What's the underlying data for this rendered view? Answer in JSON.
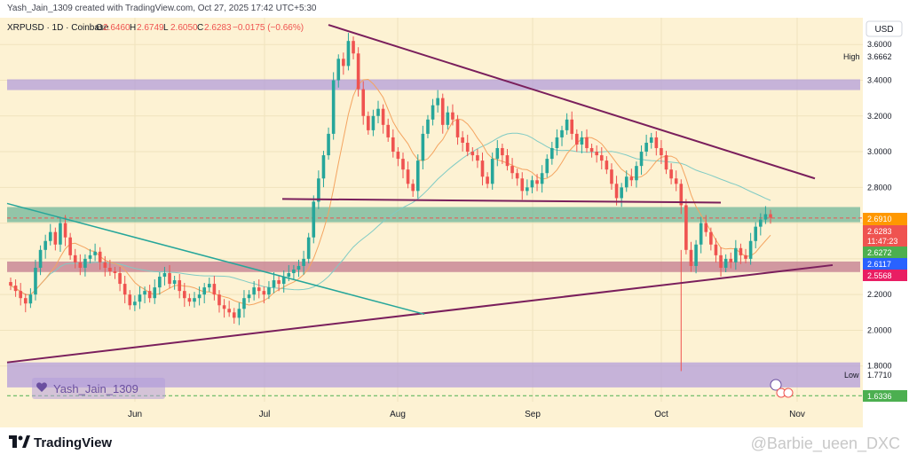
{
  "header": {
    "created": "Yash_Jain_1309 created with TradingView.com, Oct 27, 2025 17:42 UTC+5:30"
  },
  "legend": {
    "symbol": "XRPUSD · 1D · Coinbase",
    "o_label": "O",
    "o": "2.6460",
    "h_label": "H",
    "h": "2.6749",
    "l_label": "L",
    "l": "2.6050",
    "c_label": "C",
    "c": "2.6283",
    "change": "−0.0175 (−0.66%)"
  },
  "currency": "USD",
  "watermark_user": "Yash_Jain_1309",
  "brand": "TradingView",
  "source_watermark": "@Barbie_ueen_DXC",
  "price_labels": {
    "high_label": "High",
    "high": "3.6662",
    "low_label": "Low",
    "low": "1.7710",
    "l1": "2.6910",
    "current": "2.6283",
    "countdown": "11:47:23",
    "l2": "2.6272",
    "l3": "2.6117",
    "l4": "2.5568",
    "l5": "1.6336"
  },
  "colors": {
    "up": "#26a69a",
    "down": "#ef5350",
    "background": "#fdf2d3",
    "purple_zone": "#b39ddb",
    "green_zone": "#6fb59a",
    "red_zone": "#c2798f",
    "trendline": "#7a1f5c",
    "teal_line": "#26a69a"
  },
  "chart_data": {
    "type": "candlestick",
    "y_ticks": [
      "1.8000",
      "2.0000",
      "2.2000",
      "2.4000",
      "2.6000",
      "2.8000",
      "3.0000",
      "3.2000",
      "3.4000",
      "3.6000"
    ],
    "x_ticks": [
      "Jun",
      "Jul",
      "Aug",
      "Sep",
      "Oct",
      "Nov"
    ],
    "ylim": [
      1.6,
      3.75
    ],
    "zones": [
      {
        "from": 3.345,
        "to": 3.405,
        "color": "purple"
      },
      {
        "from": 2.605,
        "to": 2.69,
        "color": "green"
      },
      {
        "from": 2.326,
        "to": 2.385,
        "color": "red"
      },
      {
        "from": 1.68,
        "to": 1.82,
        "color": "purple"
      }
    ],
    "closes": [
      2.25,
      2.22,
      2.18,
      2.15,
      2.2,
      2.35,
      2.45,
      2.5,
      2.55,
      2.48,
      2.6,
      2.52,
      2.42,
      2.38,
      2.35,
      2.4,
      2.42,
      2.44,
      2.38,
      2.35,
      2.33,
      2.32,
      2.26,
      2.2,
      2.14,
      2.16,
      2.2,
      2.22,
      2.18,
      2.24,
      2.3,
      2.32,
      2.26,
      2.28,
      2.22,
      2.18,
      2.16,
      2.18,
      2.2,
      2.24,
      2.26,
      2.2,
      2.14,
      2.12,
      2.1,
      2.07,
      2.12,
      2.18,
      2.2,
      2.24,
      2.22,
      2.2,
      2.24,
      2.28,
      2.26,
      2.3,
      2.32,
      2.34,
      2.36,
      2.4,
      2.52,
      2.72,
      2.85,
      2.98,
      3.1,
      3.4,
      3.52,
      3.48,
      3.62,
      3.55,
      3.35,
      3.2,
      3.12,
      3.2,
      3.24,
      3.15,
      3.08,
      3.0,
      2.96,
      2.9,
      2.82,
      2.78,
      2.95,
      3.1,
      3.18,
      3.26,
      3.3,
      3.15,
      3.22,
      3.18,
      3.08,
      3.05,
      3.0,
      2.98,
      2.95,
      2.86,
      2.82,
      2.96,
      3.02,
      2.98,
      2.92,
      2.88,
      2.85,
      2.78,
      2.8,
      2.84,
      2.82,
      2.88,
      2.96,
      3.02,
      3.08,
      3.12,
      3.18,
      3.1,
      3.04,
      3.08,
      3.02,
      3.0,
      2.98,
      2.95,
      2.9,
      2.82,
      2.74,
      2.8,
      2.86,
      2.84,
      2.92,
      3.0,
      3.05,
      3.08,
      3.02,
      2.98,
      2.9,
      2.85,
      2.82,
      2.7,
      2.45,
      2.36,
      2.48,
      2.6,
      2.55,
      2.48,
      2.42,
      2.35,
      2.4,
      2.38,
      2.46,
      2.42,
      2.4,
      2.5,
      2.58,
      2.62,
      2.65,
      2.63
    ]
  }
}
